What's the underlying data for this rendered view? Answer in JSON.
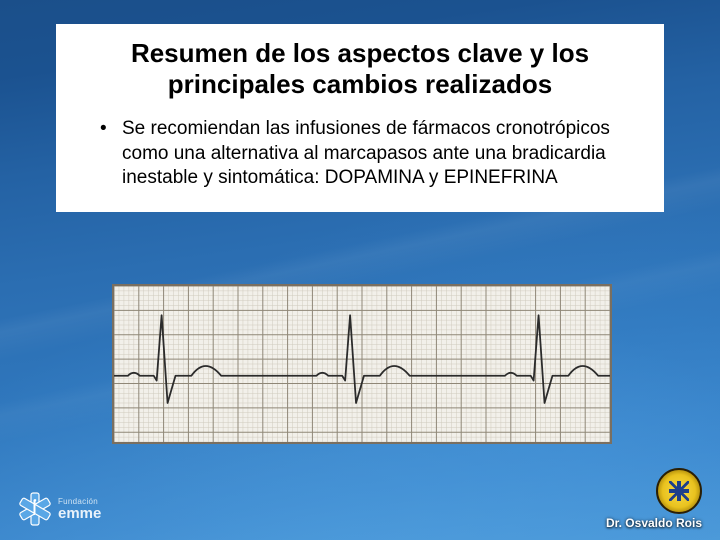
{
  "slide": {
    "background": {
      "gradient_top": "#1b4f8a",
      "gradient_bottom": "#4a97d6",
      "glow": "#5aaae6"
    },
    "content_box": {
      "bg": "#ffffff",
      "title": "Resumen de los aspectos clave y los principales cambios realizados",
      "title_fontsize": 26,
      "title_weight": 700,
      "bullets": [
        "Se recomiendan las infusiones de fármacos cronotrópicos como una alternativa al marcapasos ante una bradicardia inestable y sintomática: DOPAMINA y EPINEFRINA"
      ],
      "bullet_marker": "•",
      "body_fontsize": 19
    },
    "ecg": {
      "type": "line",
      "bg": "#f2f0ea",
      "border_color": "#7a6f60",
      "grid_fine_color": "#cfcabd",
      "grid_bold_color": "#8f8777",
      "grid_fine_step": 5,
      "grid_bold_step": 25,
      "trace_color": "#2b2b2b",
      "trace_width": 1.8,
      "baseline_y": 92,
      "ylim": [
        0,
        160
      ],
      "xlim": [
        0,
        500
      ],
      "beats": [
        {
          "x": 48,
          "p_h": 6,
          "q_d": 5,
          "r_h": 62,
          "s_d": 28,
          "t_h": 20
        },
        {
          "x": 238,
          "p_h": 6,
          "q_d": 5,
          "r_h": 62,
          "s_d": 28,
          "t_h": 20
        },
        {
          "x": 428,
          "p_h": 6,
          "q_d": 5,
          "r_h": 62,
          "s_d": 28,
          "t_h": 20
        }
      ]
    },
    "footer": {
      "emme_top": "Fundación",
      "emme_bottom": "emme",
      "star_color": "#5aa7e6",
      "star_stroke": "#ffffff",
      "doctor": "Dr. Osvaldo Rois",
      "badge_gold": "#e9c21e",
      "badge_border": "#2a1f06"
    }
  }
}
